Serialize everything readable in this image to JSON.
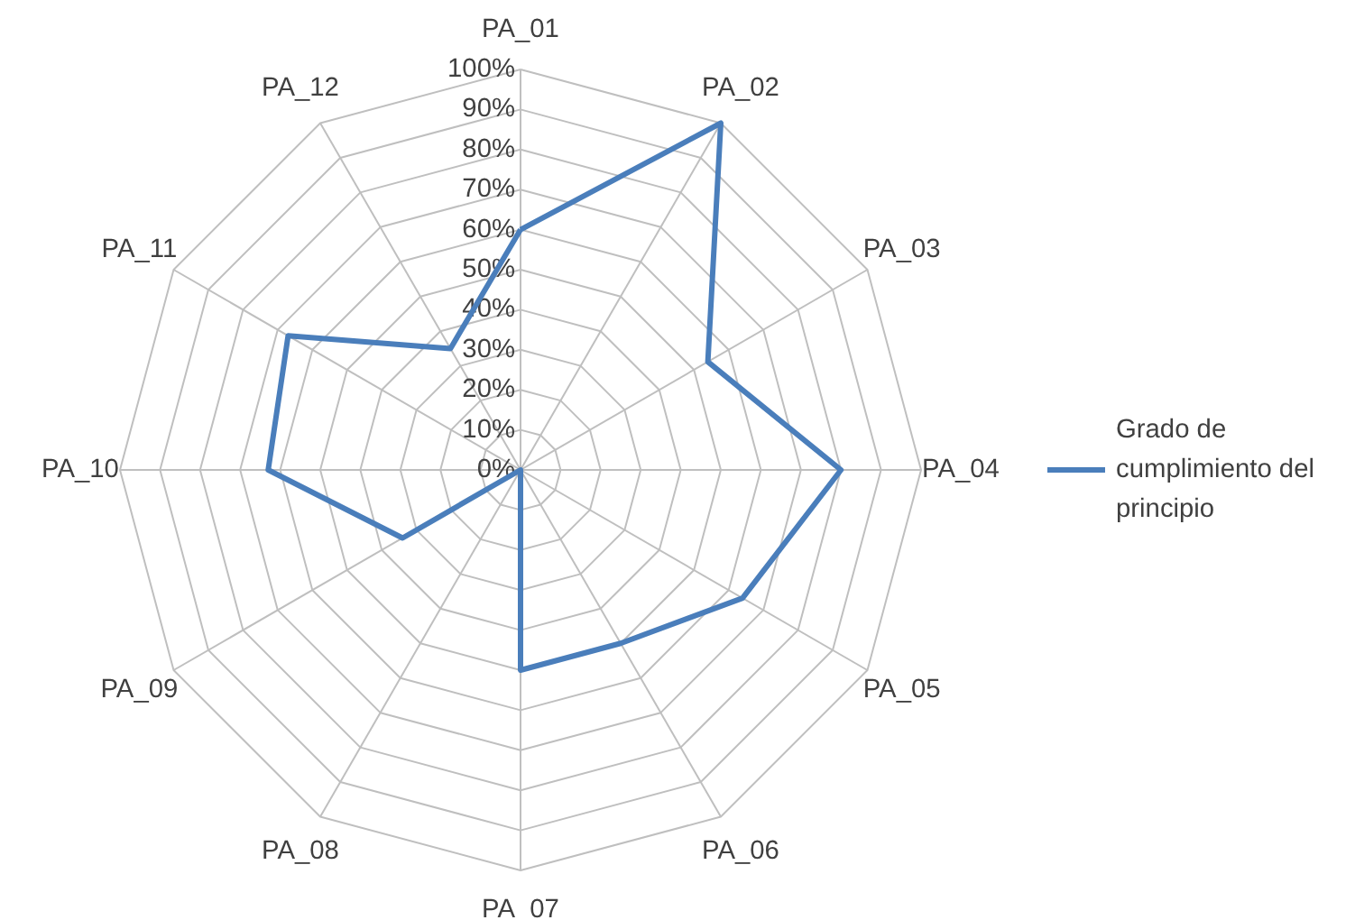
{
  "chart_data": {
    "type": "radar",
    "categories": [
      "PA_01",
      "PA_02",
      "PA_03",
      "PA_04",
      "PA_05",
      "PA_06",
      "PA_07",
      "PA_08",
      "PA_09",
      "PA_10",
      "PA_11",
      "PA_12"
    ],
    "series": [
      {
        "name": "Grado de cumplimiento del principio",
        "color": "#4a7ebb",
        "values": [
          60,
          100,
          54,
          80,
          64,
          50,
          50,
          0,
          34,
          63,
          67,
          35
        ]
      }
    ],
    "ylim": [
      0,
      100
    ],
    "yticks": [
      {
        "value": 0,
        "label": "0%"
      },
      {
        "value": 10,
        "label": "10%"
      },
      {
        "value": 20,
        "label": "20%"
      },
      {
        "value": 30,
        "label": "30%"
      },
      {
        "value": 40,
        "label": "40%"
      },
      {
        "value": 50,
        "label": "50%"
      },
      {
        "value": 60,
        "label": "60%"
      },
      {
        "value": 70,
        "label": "70%"
      },
      {
        "value": 80,
        "label": "80%"
      },
      {
        "value": 90,
        "label": "90%"
      },
      {
        "value": 100,
        "label": "100%"
      }
    ],
    "grid": true,
    "legend": "right",
    "marker": "none"
  }
}
